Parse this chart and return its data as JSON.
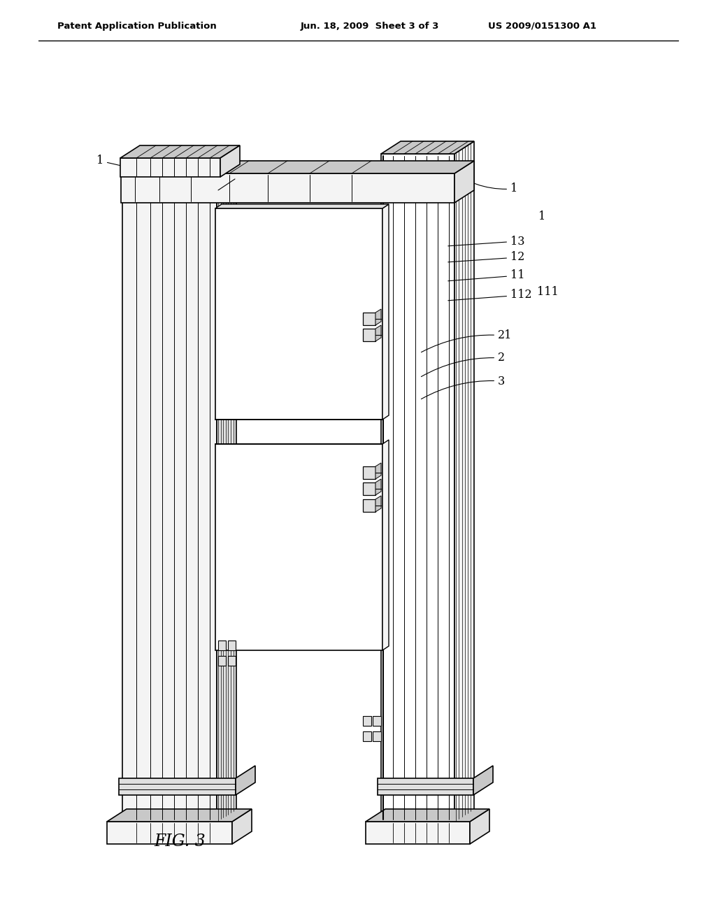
{
  "title_left": "Patent Application Publication",
  "title_mid": "Jun. 18, 2009  Sheet 3 of 3",
  "title_right": "US 2009/0151300 A1",
  "fig_label": "FIG. 3",
  "bg": "#ffffff",
  "lc": "#000000",
  "fig_width": 10.24,
  "fig_height": 13.2,
  "dpi": 100
}
